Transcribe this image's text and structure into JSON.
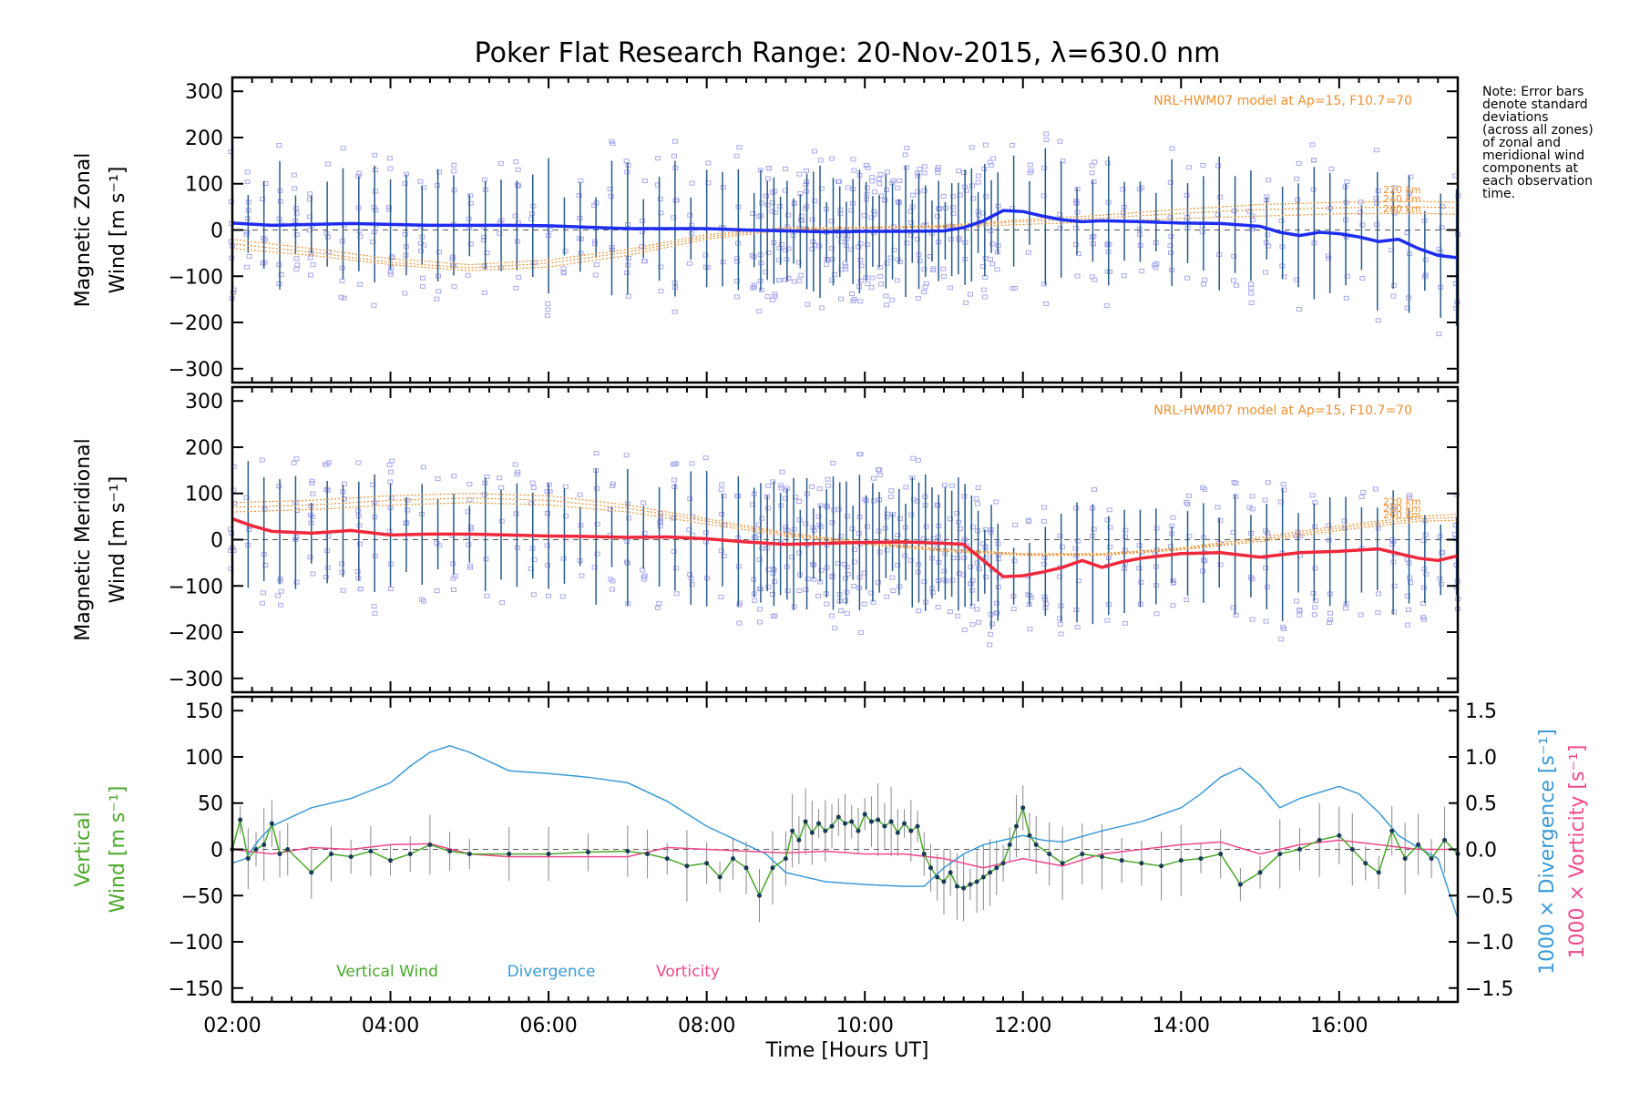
{
  "title": "Poker Flat Research Range: 20-Nov-2015, λ=630.0 nm",
  "note_lines": [
    "Note: Error bars",
    "denote standard",
    "deviations",
    "(across all zones)",
    "of zonal and",
    "meridional wind",
    "components at",
    "each observation",
    "time."
  ],
  "colors": {
    "zonal": "#1e2ef0",
    "meridional": "#f0283c",
    "vertical": "#4aa82a",
    "divergence": "#3a9ad8",
    "vorticity": "#f0488c",
    "model": "#f09030",
    "scatter": "#a8a8f0",
    "errorbar": "#2a5a8a"
  },
  "xaxis": {
    "label": "Time [Hours UT]",
    "range": [
      "02:00",
      "17:30"
    ],
    "tick_labels": [
      "02:00",
      "04:00",
      "06:00",
      "08:00",
      "10:00",
      "12:00",
      "14:00",
      "16:00"
    ]
  },
  "chart_data": [
    {
      "type": "line",
      "panel": "zonal",
      "ylabel_line1": "Magnetic Zonal",
      "ylabel_line2": "Wind [m s⁻¹]",
      "ylim": [
        -330,
        330
      ],
      "yticks": [
        -300,
        -200,
        -100,
        0,
        100,
        200,
        300
      ],
      "model_label": "NRL-HWM07 model at Ap=15, F10.7=70",
      "model_altitudes": [
        "220 km",
        "240 km",
        "260 km"
      ],
      "series": [
        {
          "name": "Magnetic Zonal Wind",
          "x": [
            "02:00",
            "02:30",
            "03:00",
            "03:30",
            "04:00",
            "04:30",
            "05:00",
            "05:30",
            "06:00",
            "06:30",
            "07:00",
            "07:30",
            "08:00",
            "08:30",
            "09:00",
            "09:30",
            "10:00",
            "10:30",
            "11:00",
            "11:15",
            "11:30",
            "11:45",
            "12:00",
            "12:15",
            "12:30",
            "12:45",
            "13:00",
            "13:30",
            "14:00",
            "14:30",
            "15:00",
            "15:15",
            "15:30",
            "15:45",
            "16:00",
            "16:15",
            "16:30",
            "16:45",
            "17:00",
            "17:15",
            "17:30"
          ],
          "y": [
            15,
            10,
            12,
            14,
            12,
            10,
            10,
            10,
            9,
            6,
            3,
            3,
            3,
            0,
            -2,
            -4,
            -3,
            -3,
            -2,
            5,
            20,
            42,
            40,
            30,
            22,
            18,
            20,
            18,
            15,
            14,
            8,
            -5,
            -12,
            -5,
            -8,
            -15,
            -25,
            -20,
            -40,
            -55,
            -60
          ]
        },
        {
          "name": "HWM07 220 km",
          "x": [
            "02:00",
            "03:00",
            "04:00",
            "05:00",
            "06:00",
            "07:00",
            "08:00",
            "09:00",
            "10:00",
            "11:00",
            "12:00",
            "13:00",
            "14:00",
            "15:00",
            "16:00",
            "17:00",
            "17:30"
          ],
          "y": [
            -40,
            -55,
            -75,
            -88,
            -80,
            -55,
            -20,
            0,
            5,
            10,
            22,
            32,
            45,
            55,
            60,
            62,
            60
          ]
        },
        {
          "name": "HWM07 240 km",
          "x": [
            "02:00",
            "03:00",
            "04:00",
            "05:00",
            "06:00",
            "07:00",
            "08:00",
            "09:00",
            "10:00",
            "11:00",
            "12:00",
            "13:00",
            "14:00",
            "15:00",
            "16:00",
            "17:00",
            "17:30"
          ],
          "y": [
            -30,
            -48,
            -70,
            -82,
            -72,
            -48,
            -15,
            3,
            6,
            8,
            18,
            26,
            36,
            44,
            48,
            50,
            48
          ]
        },
        {
          "name": "HWM07 260 km",
          "x": [
            "02:00",
            "03:00",
            "04:00",
            "05:00",
            "06:00",
            "07:00",
            "08:00",
            "09:00",
            "10:00",
            "11:00",
            "12:00",
            "13:00",
            "14:00",
            "15:00",
            "16:00",
            "17:00",
            "17:30"
          ],
          "y": [
            -20,
            -40,
            -62,
            -75,
            -65,
            -42,
            -10,
            5,
            4,
            6,
            12,
            18,
            25,
            30,
            35,
            36,
            34
          ]
        }
      ]
    },
    {
      "type": "line",
      "panel": "meridional",
      "ylabel_line1": "Magnetic Meridional",
      "ylabel_line2": "Wind [m s⁻¹]",
      "ylim": [
        -330,
        330
      ],
      "yticks": [
        -300,
        -200,
        -100,
        0,
        100,
        200,
        300
      ],
      "model_label": "NRL-HWM07 model at Ap=15, F10.7=70",
      "model_altitudes": [
        "220 km",
        "240 km",
        "260 km"
      ],
      "series": [
        {
          "name": "Magnetic Meridional Wind",
          "x": [
            "02:00",
            "02:15",
            "02:30",
            "03:00",
            "03:30",
            "04:00",
            "04:30",
            "05:00",
            "05:30",
            "06:00",
            "06:30",
            "07:00",
            "07:30",
            "08:00",
            "08:30",
            "09:00",
            "09:30",
            "10:00",
            "10:30",
            "11:00",
            "11:15",
            "11:30",
            "11:45",
            "12:00",
            "12:15",
            "12:30",
            "12:45",
            "13:00",
            "13:15",
            "13:30",
            "14:00",
            "14:30",
            "15:00",
            "15:30",
            "16:00",
            "16:30",
            "17:00",
            "17:15",
            "17:30"
          ],
          "y": [
            45,
            30,
            18,
            14,
            20,
            10,
            12,
            12,
            10,
            8,
            7,
            5,
            6,
            2,
            -5,
            -10,
            -8,
            -6,
            -5,
            -8,
            -10,
            -45,
            -80,
            -78,
            -70,
            -60,
            -45,
            -60,
            -48,
            -40,
            -30,
            -28,
            -38,
            -28,
            -25,
            -20,
            -40,
            -45,
            -35
          ]
        },
        {
          "name": "HWM07 220 km",
          "x": [
            "02:00",
            "03:00",
            "04:00",
            "05:00",
            "06:00",
            "07:00",
            "08:00",
            "09:00",
            "10:00",
            "11:00",
            "12:00",
            "13:00",
            "14:00",
            "15:00",
            "16:00",
            "17:00",
            "17:30"
          ],
          "y": [
            80,
            85,
            95,
            100,
            95,
            75,
            45,
            15,
            -5,
            -20,
            -30,
            -30,
            -18,
            5,
            30,
            50,
            55
          ]
        },
        {
          "name": "HWM07 240 km",
          "x": [
            "02:00",
            "03:00",
            "04:00",
            "05:00",
            "06:00",
            "07:00",
            "08:00",
            "09:00",
            "10:00",
            "11:00",
            "12:00",
            "13:00",
            "14:00",
            "15:00",
            "16:00",
            "17:00",
            "17:30"
          ],
          "y": [
            70,
            75,
            85,
            90,
            85,
            68,
            40,
            12,
            -8,
            -22,
            -32,
            -32,
            -20,
            0,
            25,
            45,
            48
          ]
        },
        {
          "name": "HWM07 260 km",
          "x": [
            "02:00",
            "03:00",
            "04:00",
            "05:00",
            "06:00",
            "07:00",
            "08:00",
            "09:00",
            "10:00",
            "11:00",
            "12:00",
            "13:00",
            "14:00",
            "15:00",
            "16:00",
            "17:00",
            "17:30"
          ],
          "y": [
            60,
            65,
            75,
            80,
            75,
            60,
            34,
            8,
            -10,
            -25,
            -34,
            -34,
            -22,
            -4,
            20,
            40,
            42
          ]
        }
      ]
    },
    {
      "type": "line",
      "panel": "vertical",
      "ylabel_line1": "Vertical",
      "ylabel_line2": "Wind [m s⁻¹]",
      "ylim": [
        -165,
        165
      ],
      "yticks": [
        -150,
        -100,
        -50,
        0,
        50,
        100,
        150
      ],
      "y2label_line1": "1000 × Divergence [s⁻¹]",
      "y2label_line2": "1000 × Vorticity [s⁻¹]",
      "y2lim": [
        -1.65,
        1.65
      ],
      "y2ticks": [
        "-1.5",
        "-1.0",
        "-0.5",
        "0.0",
        "0.5",
        "1.0",
        "1.5"
      ],
      "legend": [
        "Vertical Wind",
        "Divergence",
        "Vorticity"
      ],
      "series": [
        {
          "name": "Vertical Wind",
          "x": [
            "02:00",
            "02:06",
            "02:12",
            "02:18",
            "02:24",
            "02:30",
            "02:36",
            "02:42",
            "03:00",
            "03:15",
            "03:30",
            "03:45",
            "04:00",
            "04:15",
            "04:30",
            "04:45",
            "05:00",
            "05:30",
            "06:00",
            "06:30",
            "07:00",
            "07:15",
            "07:30",
            "07:45",
            "08:00",
            "08:10",
            "08:20",
            "08:30",
            "08:40",
            "08:50",
            "09:00",
            "09:05",
            "09:10",
            "09:15",
            "09:20",
            "09:25",
            "09:30",
            "09:35",
            "09:40",
            "09:45",
            "09:50",
            "09:55",
            "10:00",
            "10:05",
            "10:10",
            "10:15",
            "10:20",
            "10:25",
            "10:30",
            "10:35",
            "10:40",
            "10:45",
            "10:50",
            "10:55",
            "11:00",
            "11:05",
            "11:10",
            "11:15",
            "11:20",
            "11:25",
            "11:30",
            "11:35",
            "11:40",
            "11:45",
            "11:50",
            "11:55",
            "12:00",
            "12:05",
            "12:10",
            "12:20",
            "12:30",
            "12:45",
            "13:00",
            "13:15",
            "13:30",
            "13:45",
            "14:00",
            "14:15",
            "14:30",
            "14:45",
            "15:00",
            "15:15",
            "15:30",
            "15:45",
            "16:00",
            "16:10",
            "16:20",
            "16:30",
            "16:40",
            "16:50",
            "17:00",
            "17:10",
            "17:20",
            "17:30"
          ],
          "y": [
            0,
            32,
            -10,
            0,
            5,
            28,
            -5,
            0,
            -25,
            -5,
            -8,
            -2,
            -12,
            -5,
            5,
            -2,
            -5,
            -5,
            -5,
            -3,
            -2,
            -5,
            -10,
            -18,
            -15,
            -30,
            -10,
            -20,
            -50,
            -20,
            -10,
            20,
            10,
            30,
            18,
            28,
            20,
            25,
            35,
            28,
            30,
            20,
            38,
            30,
            32,
            25,
            30,
            18,
            28,
            20,
            25,
            -5,
            -20,
            -30,
            -35,
            -25,
            -40,
            -42,
            -38,
            -35,
            -30,
            -25,
            -20,
            -15,
            5,
            25,
            45,
            15,
            5,
            -5,
            -15,
            -5,
            -8,
            -12,
            -15,
            -18,
            -12,
            -10,
            -5,
            -38,
            -25,
            -5,
            0,
            10,
            15,
            0,
            -15,
            -25,
            20,
            -10,
            5,
            -10,
            10,
            -5
          ]
        },
        {
          "name": "Divergence",
          "x": [
            "02:00",
            "02:10",
            "02:20",
            "02:30",
            "02:45",
            "03:00",
            "03:30",
            "04:00",
            "04:15",
            "04:30",
            "04:45",
            "05:00",
            "05:30",
            "06:00",
            "06:30",
            "07:00",
            "07:30",
            "08:00",
            "08:30",
            "08:45",
            "09:00",
            "09:15",
            "09:30",
            "10:00",
            "10:30",
            "10:45",
            "11:00",
            "11:15",
            "11:30",
            "11:45",
            "12:00",
            "12:15",
            "12:30",
            "13:00",
            "13:30",
            "14:00",
            "14:15",
            "14:30",
            "14:45",
            "15:00",
            "15:15",
            "15:30",
            "16:00",
            "16:15",
            "16:30",
            "16:45",
            "17:00",
            "17:15",
            "17:30"
          ],
          "y": [
            -0.15,
            -0.1,
            0.1,
            0.25,
            0.35,
            0.45,
            0.55,
            0.72,
            0.9,
            1.05,
            1.12,
            1.05,
            0.85,
            0.82,
            0.78,
            0.72,
            0.52,
            0.25,
            0.05,
            -0.05,
            -0.25,
            -0.3,
            -0.35,
            -0.38,
            -0.4,
            -0.4,
            -0.2,
            -0.05,
            0.05,
            0.1,
            0.15,
            0.1,
            0.08,
            0.2,
            0.3,
            0.45,
            0.6,
            0.78,
            0.88,
            0.7,
            0.45,
            0.55,
            0.68,
            0.6,
            0.4,
            0.15,
            0.02,
            -0.1,
            -0.75
          ]
        },
        {
          "name": "Vorticity",
          "x": [
            "02:00",
            "02:30",
            "03:00",
            "03:30",
            "04:00",
            "04:30",
            "05:00",
            "05:30",
            "06:00",
            "06:30",
            "07:00",
            "07:30",
            "08:00",
            "08:30",
            "09:00",
            "09:30",
            "10:00",
            "10:30",
            "11:00",
            "11:30",
            "12:00",
            "12:30",
            "13:00",
            "13:30",
            "14:00",
            "14:30",
            "15:00",
            "15:30",
            "16:00",
            "16:30",
            "17:00",
            "17:30"
          ],
          "y": [
            0,
            -0.05,
            0.02,
            0,
            0.05,
            0.06,
            -0.05,
            -0.08,
            -0.08,
            -0.08,
            -0.08,
            0.02,
            0,
            -0.02,
            -0.04,
            -0.02,
            -0.05,
            -0.05,
            -0.1,
            -0.2,
            -0.1,
            -0.18,
            -0.05,
            0,
            0.05,
            0.08,
            -0.05,
            0.05,
            0.1,
            0.05,
            0,
            0
          ]
        }
      ]
    }
  ]
}
